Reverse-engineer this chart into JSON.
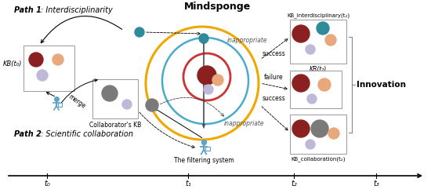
{
  "title": "Mindsponge",
  "path1_label": "Path 1",
  "path1_sub": ": Interdisciplinarity",
  "path2_label": "Path 2",
  "path2_sub": ": Scientific collaboration",
  "kb_t0_label": "KB(t₀)",
  "collab_kb_label": "Collaborator's KB",
  "filter_label": "The filtering system",
  "inappropriate_top": "inappropriate",
  "inappropriate_bot": "inappropriate",
  "success_top": "success",
  "failure_mid": "failure",
  "success_bot": "success",
  "kb_interdisciplinary": "KB_interdisciplinary(t₂)",
  "kb_t2_label": "KB(t₂)",
  "kb_collaboration": "KB_collaboration(t₂)",
  "innovation_label": "Innovation",
  "merge_label": "merge",
  "timeline": [
    "t₀",
    "t₁",
    "t₂",
    "t₃"
  ],
  "bg_color": "#ffffff",
  "dark_red": "#8B2020",
  "orange_dot": "#E8A87C",
  "lavender_dot": "#C0B8D8",
  "teal_dot": "#2E8B9A",
  "gray_dot": "#7A7A7A",
  "circle_outer_color": "#F0A800",
  "circle_mid_color": "#4AABCB",
  "circle_inner_color": "#CC3333",
  "arrow_color": "#444444",
  "person_color": "#5BA3C9"
}
